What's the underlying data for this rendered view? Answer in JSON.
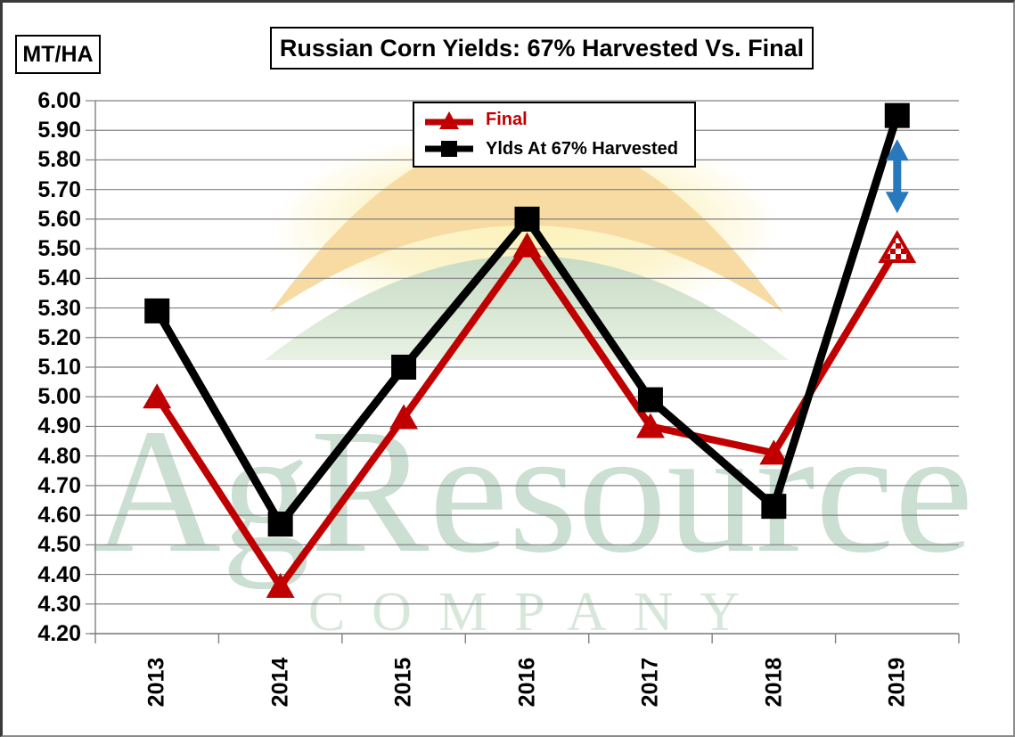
{
  "colors": {
    "final_red": "#C00000",
    "harvested_black": "#000000",
    "gap_arrow_blue": "#2878BE",
    "gridline_gray": "#808080",
    "watermark_green": "#CBDFD3",
    "watermark_company_green": "#D7E7DA",
    "logo_arc_orange": "#F7DBA3",
    "logo_glow_yellow": "#FCF3BC",
    "logo_arc_green_top": "#C7DBC5",
    "logo_arc_green_bottom": "#E8F2E3"
  },
  "header": {
    "units_label": "MT/HA",
    "title": "Russian Corn Yields: 67% Harvested Vs. Final"
  },
  "legend": {
    "items": [
      {
        "label": "Final",
        "color": "#C00000",
        "marker": "triangle"
      },
      {
        "label": "Ylds At 67% Harvested",
        "color": "#000000",
        "marker": "square"
      }
    ]
  },
  "watermark": {
    "line1": "AgResource",
    "line2": "COMPANY"
  },
  "chart_data": {
    "type": "line",
    "title": "Russian Corn Yields: 67% Harvested Vs. Final",
    "ylabel": "MT/HA",
    "categories": [
      "2013",
      "2014",
      "2015",
      "2016",
      "2017",
      "2018",
      "2019"
    ],
    "series": [
      {
        "name": "Final",
        "color": "#C00000",
        "marker": "triangle",
        "values": [
          5.0,
          4.36,
          4.93,
          5.51,
          4.9,
          4.81,
          5.5
        ],
        "last_point_marker": "open-checkered-triangle"
      },
      {
        "name": "Ylds At 67% Harvested",
        "color": "#000000",
        "marker": "square",
        "values": [
          5.29,
          4.57,
          5.1,
          5.6,
          4.99,
          4.63,
          5.95
        ]
      }
    ],
    "ylim": [
      4.2,
      6.0
    ],
    "ytick_step": 0.1,
    "ytick_labels": [
      "6.00",
      "5.90",
      "5.80",
      "5.70",
      "5.60",
      "5.50",
      "5.40",
      "5.30",
      "5.20",
      "5.10",
      "5.00",
      "4.90",
      "4.80",
      "4.70",
      "4.60",
      "4.50",
      "4.40",
      "4.30",
      "4.20"
    ],
    "grid": true,
    "legend_position": "top-center-inside",
    "annotation_arrow": {
      "style": "double-headed-vertical",
      "color": "#2878BE",
      "category": "2019",
      "from_value": 5.87,
      "to_value": 5.62
    }
  }
}
